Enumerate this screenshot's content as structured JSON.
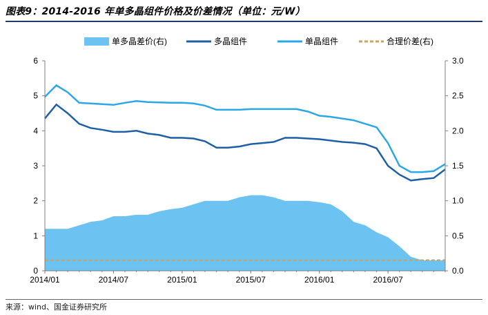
{
  "title": "图表9：2014-2016 年单多晶组件价格及价差情况（单位：元/W）",
  "source": "来源：wind、国金证券研究所",
  "colors": {
    "area": "#6cc3f2",
    "multi_line": "#1d5fa6",
    "mono_line": "#2aa7e6",
    "fair_line": "#c8a46a",
    "axis": "#7f7f7f"
  },
  "chart_data": {
    "type": "area",
    "x_tick_labels": [
      "2014/01",
      "2014/07",
      "2015/01",
      "2015/07",
      "2016/01",
      "2016/07"
    ],
    "x_range": [
      "2014/01",
      "2016/12"
    ],
    "y_left": {
      "ticks": [
        0,
        1,
        2,
        3,
        4,
        5,
        6
      ],
      "range": [
        0,
        6
      ]
    },
    "y_right": {
      "ticks": [
        "0.0",
        "0.5",
        "1.0",
        "1.5",
        "2.0",
        "2.5",
        "3.0"
      ],
      "range": [
        0,
        3
      ]
    },
    "legend": [
      "单多晶差价(右)",
      "多晶组件",
      "单晶组件",
      "合理价差(右)"
    ],
    "legend_position": "top",
    "months": [
      "2014/01",
      "2014/02",
      "2014/03",
      "2014/04",
      "2014/05",
      "2014/06",
      "2014/07",
      "2014/08",
      "2014/09",
      "2014/10",
      "2014/11",
      "2014/12",
      "2015/01",
      "2015/02",
      "2015/03",
      "2015/04",
      "2015/05",
      "2015/06",
      "2015/07",
      "2015/08",
      "2015/09",
      "2015/10",
      "2015/11",
      "2015/12",
      "2016/01",
      "2016/02",
      "2016/03",
      "2016/04",
      "2016/05",
      "2016/06",
      "2016/07",
      "2016/08",
      "2016/09",
      "2016/10",
      "2016/11",
      "2016/12"
    ],
    "series": [
      {
        "name": "单多晶差价(右)",
        "axis": "right",
        "kind": "area",
        "values": [
          0.6,
          0.6,
          0.6,
          0.65,
          0.7,
          0.72,
          0.78,
          0.78,
          0.8,
          0.8,
          0.85,
          0.88,
          0.9,
          0.95,
          1.0,
          1.0,
          1.0,
          1.05,
          1.08,
          1.08,
          1.05,
          1.0,
          1.0,
          1.0,
          0.98,
          0.95,
          0.85,
          0.7,
          0.65,
          0.55,
          0.48,
          0.35,
          0.2,
          0.15,
          0.15,
          0.15
        ]
      },
      {
        "name": "多晶组件",
        "axis": "left",
        "kind": "line",
        "values": [
          4.35,
          4.75,
          4.5,
          4.2,
          4.08,
          4.03,
          3.97,
          3.97,
          4.0,
          3.92,
          3.88,
          3.8,
          3.8,
          3.78,
          3.7,
          3.52,
          3.52,
          3.55,
          3.62,
          3.65,
          3.68,
          3.8,
          3.8,
          3.78,
          3.76,
          3.72,
          3.68,
          3.66,
          3.62,
          3.5,
          3.0,
          2.75,
          2.58,
          2.62,
          2.65,
          2.9
        ]
      },
      {
        "name": "单晶组件",
        "axis": "left",
        "kind": "line",
        "values": [
          4.97,
          5.3,
          5.1,
          4.8,
          4.78,
          4.76,
          4.74,
          4.8,
          4.85,
          4.82,
          4.81,
          4.8,
          4.8,
          4.78,
          4.72,
          4.6,
          4.6,
          4.6,
          4.62,
          4.62,
          4.62,
          4.62,
          4.62,
          4.55,
          4.43,
          4.4,
          4.35,
          4.3,
          4.2,
          4.1,
          3.65,
          3.0,
          2.82,
          2.82,
          2.85,
          3.05
        ]
      },
      {
        "name": "合理价差(右)",
        "axis": "right",
        "kind": "dashed",
        "values": [
          0.15,
          0.15,
          0.15,
          0.15,
          0.15,
          0.15,
          0.15,
          0.15,
          0.15,
          0.15,
          0.15,
          0.15,
          0.15,
          0.15,
          0.15,
          0.15,
          0.15,
          0.15,
          0.15,
          0.15,
          0.15,
          0.15,
          0.15,
          0.15,
          0.15,
          0.15,
          0.15,
          0.15,
          0.15,
          0.15,
          0.15,
          0.15,
          0.15,
          0.15,
          0.15,
          0.15
        ]
      }
    ]
  }
}
